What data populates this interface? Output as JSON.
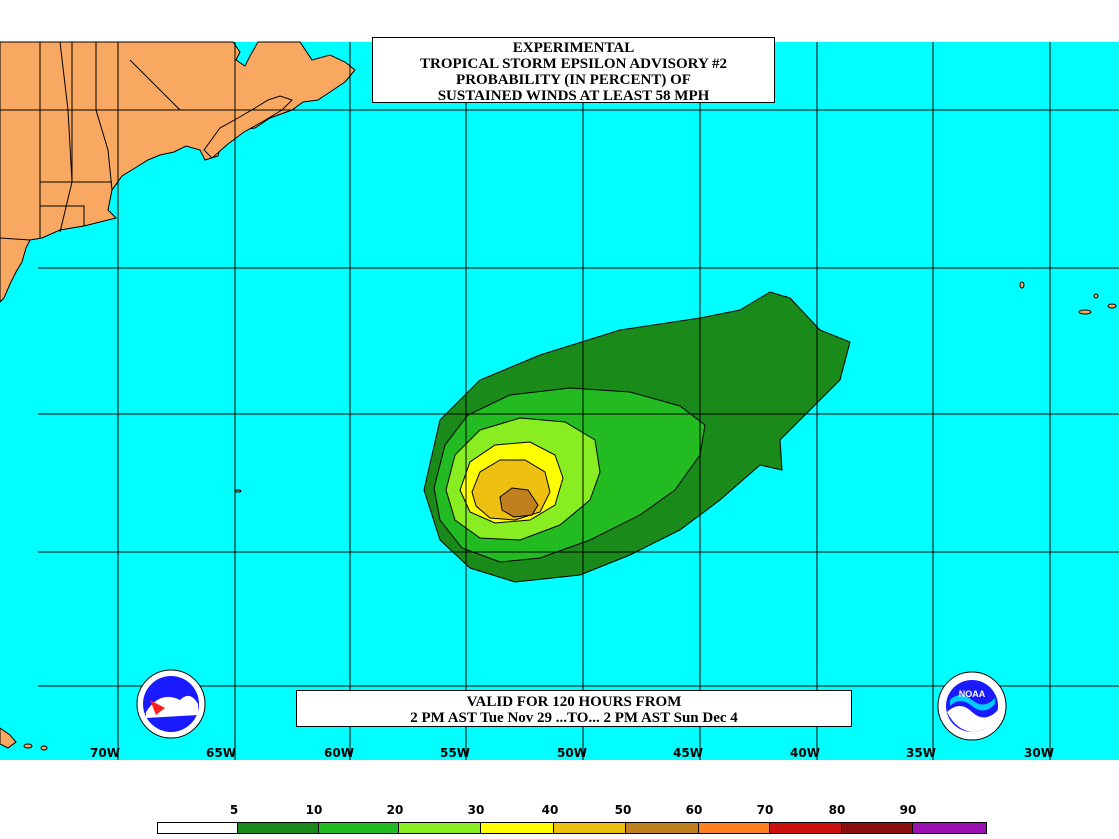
{
  "title": {
    "lines": [
      "EXPERIMENTAL",
      "TROPICAL STORM EPSILON ADVISORY #2",
      "PROBABILITY (IN PERCENT) OF",
      "SUSTAINED WINDS AT LEAST 58 MPH"
    ]
  },
  "valid": {
    "line1": "VALID FOR 120 HOURS FROM",
    "line2": "2 PM AST Tue Nov 29 ...TO... 2 PM AST Sun Dec 4"
  },
  "longitude_labels": [
    "70W",
    "65W",
    "60W",
    "55W",
    "50W",
    "45W",
    "40W",
    "35W",
    "30W"
  ],
  "legend": {
    "thresholds": [
      "5",
      "10",
      "20",
      "30",
      "40",
      "50",
      "60",
      "70",
      "80",
      "90"
    ],
    "colors": [
      "#ffffff",
      "#1a8a1a",
      "#22bb22",
      "#88ee22",
      "#ffff00",
      "#eec010",
      "#c08020",
      "#ff8020",
      "#cc1010",
      "#8a1010",
      "#9a10b0"
    ]
  },
  "colors": {
    "ocean": "#00ffff",
    "land": "#f9a861",
    "band_5_10": "#1a8a1a",
    "band_10_20": "#22bb22",
    "band_20_30": "#88ee22",
    "band_30_40": "#ffff00",
    "band_40_50": "#eec010",
    "band_50_60": "#c08020"
  },
  "logos": {
    "left": "nws-logo",
    "right": "noaa-logo",
    "right_text": "NOAA"
  }
}
